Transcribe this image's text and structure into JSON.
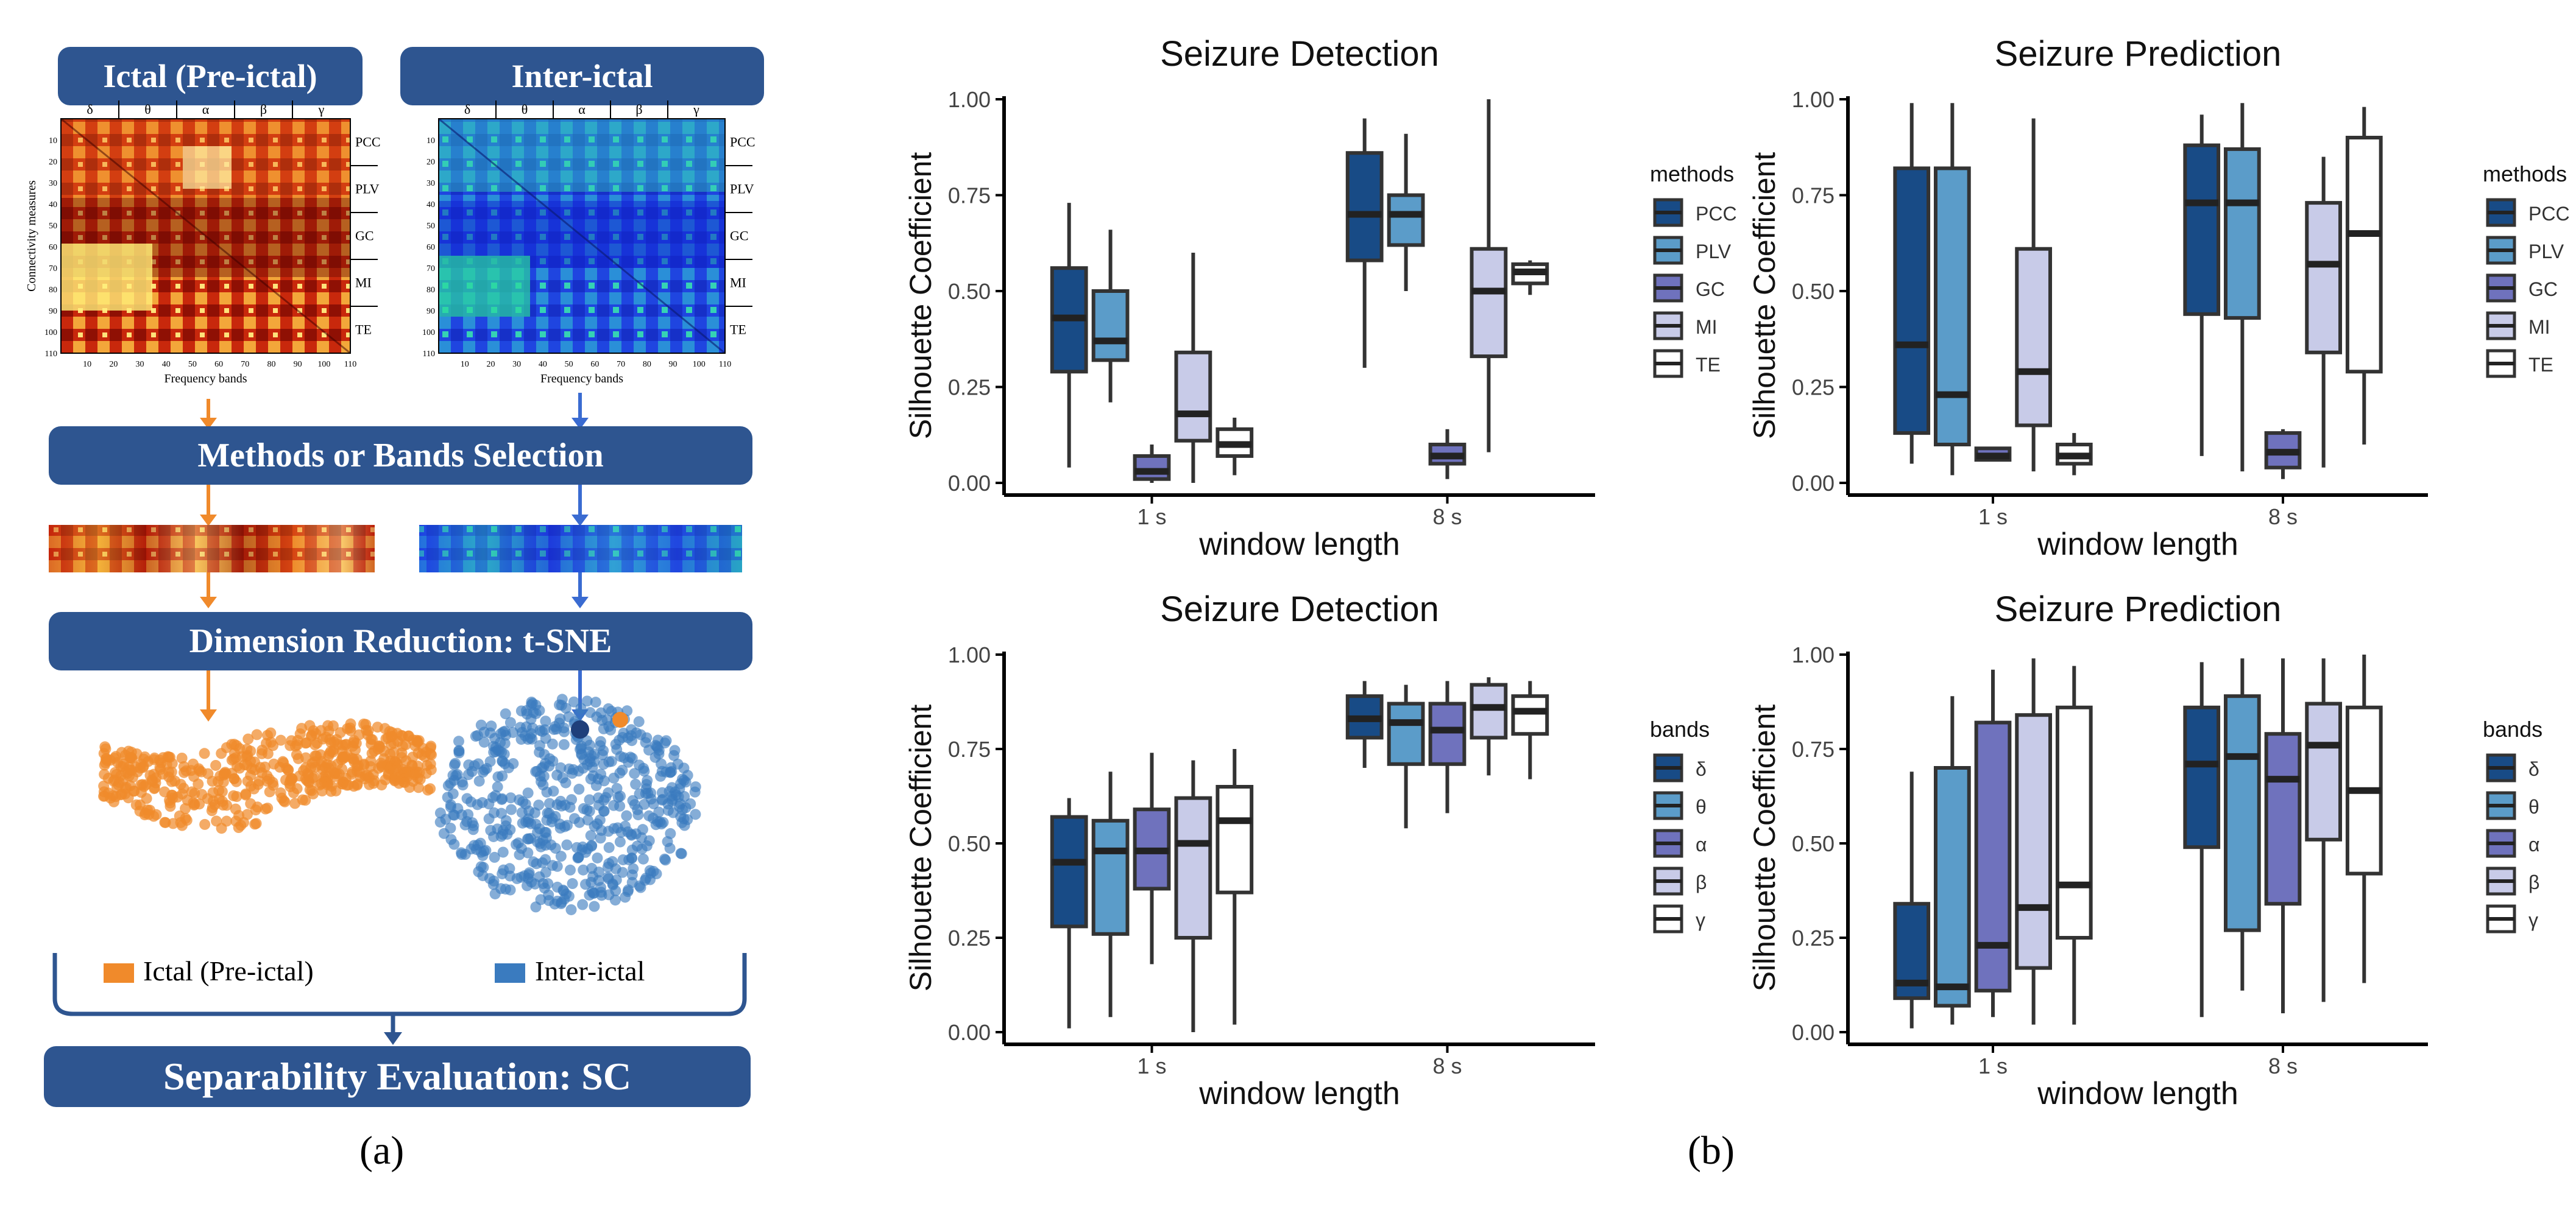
{
  "colors": {
    "navy": "#2e5590",
    "orange": "#f08a2b",
    "blue": "#3a7bbf",
    "fills": [
      "#184b86",
      "#5b9cc9",
      "#6f72bd",
      "#c8cbe8",
      "#ffffff"
    ]
  },
  "panel_a": {
    "ictal_title": "Ictal (Pre-ictal)",
    "interictal_title": "Inter-ictal",
    "heatmap_bands": [
      "δ",
      "θ",
      "α",
      "β",
      "γ"
    ],
    "heatmap_measures": [
      "PCC",
      "PLV",
      "GC",
      "MI",
      "TE"
    ],
    "heatmap_y_ticks": [
      "10",
      "20",
      "30",
      "40",
      "50",
      "60",
      "70",
      "80",
      "90",
      "100",
      "110"
    ],
    "heatmap_x_ticks": [
      "10",
      "20",
      "30",
      "40",
      "50",
      "60",
      "70",
      "80",
      "90",
      "100",
      "110"
    ],
    "heatmap_ylabel": "Connectivity measures",
    "heatmap_xlabel": "Frequency bands",
    "step_selection": "Methods or Bands Selection",
    "step_reduction": "Dimension Reduction: t-SNE",
    "legend_ictal": "Ictal (Pre-ictal)",
    "legend_interictal": "Inter-ictal",
    "step_evaluation": "Separability Evaluation: SC",
    "label": "(a)"
  },
  "panel_b_label": "(b)",
  "chart_data": [
    {
      "type": "box",
      "title": "Seizure Detection",
      "xlabel": "window length",
      "ylabel": "Silhouette Coefficient",
      "categories": [
        "1 s",
        "8 s"
      ],
      "yticks": [
        "0.00",
        "0.25",
        "0.50",
        "0.75",
        "1.00"
      ],
      "ylim": [
        0,
        1
      ],
      "legend_title": "methods",
      "series": [
        {
          "name": "PCC",
          "boxes": [
            [
              0.04,
              0.29,
              0.43,
              0.56,
              0.73
            ],
            [
              0.3,
              0.58,
              0.7,
              0.86,
              0.95
            ]
          ]
        },
        {
          "name": "PLV",
          "boxes": [
            [
              0.21,
              0.32,
              0.37,
              0.5,
              0.66
            ],
            [
              0.5,
              0.62,
              0.7,
              0.75,
              0.91
            ]
          ]
        },
        {
          "name": "GC",
          "boxes": [
            [
              0.0,
              0.01,
              0.03,
              0.07,
              0.1
            ],
            [
              0.01,
              0.05,
              0.07,
              0.1,
              0.14
            ]
          ]
        },
        {
          "name": "MI",
          "boxes": [
            [
              0.0,
              0.11,
              0.18,
              0.34,
              0.6
            ],
            [
              0.08,
              0.33,
              0.5,
              0.61,
              1.0
            ]
          ]
        },
        {
          "name": "TE",
          "boxes": [
            [
              0.02,
              0.07,
              0.1,
              0.14,
              0.17
            ],
            [
              0.49,
              0.52,
              0.55,
              0.57,
              0.58
            ]
          ]
        }
      ]
    },
    {
      "type": "box",
      "title": "Seizure Prediction",
      "xlabel": "window length",
      "ylabel": "Silhouette Coefficient",
      "categories": [
        "1 s",
        "8 s"
      ],
      "yticks": [
        "0.00",
        "0.25",
        "0.50",
        "0.75",
        "1.00"
      ],
      "ylim": [
        0,
        1
      ],
      "legend_title": "methods",
      "series": [
        {
          "name": "PCC",
          "boxes": [
            [
              0.05,
              0.13,
              0.36,
              0.82,
              0.99
            ],
            [
              0.07,
              0.44,
              0.73,
              0.88,
              0.96
            ]
          ]
        },
        {
          "name": "PLV",
          "boxes": [
            [
              0.02,
              0.1,
              0.23,
              0.82,
              0.99
            ],
            [
              0.03,
              0.43,
              0.73,
              0.87,
              0.99
            ]
          ]
        },
        {
          "name": "GC",
          "boxes": [
            [
              0.06,
              0.06,
              0.07,
              0.09,
              0.09
            ],
            [
              0.01,
              0.04,
              0.08,
              0.13,
              0.14
            ]
          ]
        },
        {
          "name": "MI",
          "boxes": [
            [
              0.03,
              0.15,
              0.29,
              0.61,
              0.95
            ],
            [
              0.04,
              0.34,
              0.57,
              0.73,
              0.85
            ]
          ]
        },
        {
          "name": "TE",
          "boxes": [
            [
              0.02,
              0.05,
              0.07,
              0.1,
              0.13
            ],
            [
              0.1,
              0.29,
              0.65,
              0.9,
              0.98
            ]
          ]
        }
      ]
    },
    {
      "type": "box",
      "title": "Seizure Detection",
      "xlabel": "window length",
      "ylabel": "Silhouette Coefficient",
      "categories": [
        "1 s",
        "8 s"
      ],
      "yticks": [
        "0.00",
        "0.25",
        "0.50",
        "0.75",
        "1.00"
      ],
      "ylim": [
        0,
        1
      ],
      "legend_title": "bands",
      "series": [
        {
          "name": "δ",
          "boxes": [
            [
              0.01,
              0.28,
              0.45,
              0.57,
              0.62
            ],
            [
              0.7,
              0.78,
              0.83,
              0.89,
              0.93
            ]
          ]
        },
        {
          "name": "θ",
          "boxes": [
            [
              0.04,
              0.26,
              0.48,
              0.56,
              0.69
            ],
            [
              0.54,
              0.71,
              0.82,
              0.87,
              0.92
            ]
          ]
        },
        {
          "name": "α",
          "boxes": [
            [
              0.18,
              0.38,
              0.48,
              0.59,
              0.74
            ],
            [
              0.58,
              0.71,
              0.8,
              0.87,
              0.93
            ]
          ]
        },
        {
          "name": "β",
          "boxes": [
            [
              0.0,
              0.25,
              0.5,
              0.62,
              0.72
            ],
            [
              0.68,
              0.78,
              0.86,
              0.92,
              0.94
            ]
          ]
        },
        {
          "name": "γ",
          "boxes": [
            [
              0.02,
              0.37,
              0.56,
              0.65,
              0.75
            ],
            [
              0.67,
              0.79,
              0.85,
              0.89,
              0.93
            ]
          ]
        }
      ]
    },
    {
      "type": "box",
      "title": "Seizure Prediction",
      "xlabel": "window length",
      "ylabel": "Silhouette Coefficient",
      "categories": [
        "1 s",
        "8 s"
      ],
      "yticks": [
        "0.00",
        "0.25",
        "0.50",
        "0.75",
        "1.00"
      ],
      "ylim": [
        0,
        1
      ],
      "legend_title": "bands",
      "series": [
        {
          "name": "δ",
          "boxes": [
            [
              0.01,
              0.09,
              0.13,
              0.34,
              0.69
            ],
            [
              0.04,
              0.49,
              0.71,
              0.86,
              0.98
            ]
          ]
        },
        {
          "name": "θ",
          "boxes": [
            [
              0.02,
              0.07,
              0.12,
              0.7,
              0.89
            ],
            [
              0.11,
              0.27,
              0.73,
              0.89,
              0.99
            ]
          ]
        },
        {
          "name": "α",
          "boxes": [
            [
              0.04,
              0.11,
              0.23,
              0.82,
              0.96
            ],
            [
              0.05,
              0.34,
              0.67,
              0.79,
              0.99
            ]
          ]
        },
        {
          "name": "β",
          "boxes": [
            [
              0.02,
              0.17,
              0.33,
              0.84,
              0.99
            ],
            [
              0.08,
              0.51,
              0.76,
              0.87,
              0.99
            ]
          ]
        },
        {
          "name": "γ",
          "boxes": [
            [
              0.02,
              0.25,
              0.39,
              0.86,
              0.97
            ],
            [
              0.13,
              0.42,
              0.64,
              0.86,
              1.0
            ]
          ]
        }
      ]
    }
  ]
}
